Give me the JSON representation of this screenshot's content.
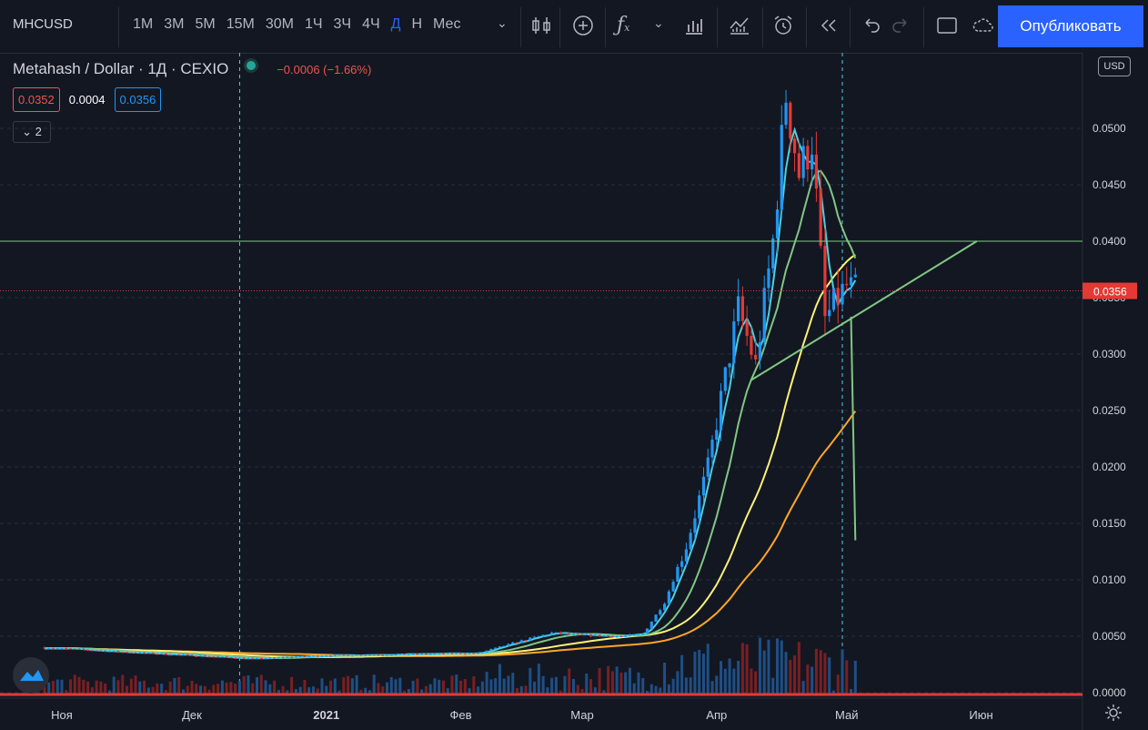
{
  "toolbar": {
    "symbol": "MHCUSD",
    "timeframes": [
      "1М",
      "3М",
      "5М",
      "15М",
      "30М",
      "1Ч",
      "3Ч",
      "4Ч",
      "Д",
      "Н",
      "Мес"
    ],
    "active_timeframe": "Д",
    "publish_label": "Опубликовать"
  },
  "legend": {
    "title": "Metahash / Dollar · 1Д · CEXIO",
    "change": "−0.0006 (−1.66%)",
    "bid": "0.0352",
    "spread": "0.0004",
    "ask": "0.0356",
    "collapsed_count": "2"
  },
  "price_scale": {
    "currency": "USD",
    "current_price_label": "0.0356"
  },
  "colors": {
    "background": "#131722",
    "up": "#2196f3",
    "down": "#e53935",
    "ma_fast": "#4dd0e1",
    "ma_mid": "#81c784",
    "ma_slow": "#fff176",
    "ma_slowest": "#ffa726",
    "drawing_line": "#81c784",
    "accent": "#2962ff"
  },
  "chart_data": {
    "type": "candlestick",
    "x_tick_labels": [
      "Ноя",
      "Дек",
      "2021",
      "Фев",
      "Мар",
      "Апр",
      "Май",
      "Июн"
    ],
    "y_tick_labels": [
      "0.0000",
      "0.0050",
      "0.0100",
      "0.0150",
      "0.0200",
      "0.0250",
      "0.0300",
      "0.0350",
      "0.0400",
      "0.0450",
      "0.0500"
    ],
    "ylim": [
      0,
      0.055
    ],
    "current_price": 0.0356,
    "horizontal_level": 0.04,
    "trendline": [
      [
        "2021-04-09",
        0.0277
      ],
      [
        "2021-05-31",
        0.04
      ]
    ],
    "vertical_line": [
      [
        "2021-05-02",
        0.0333
      ],
      [
        "2021-05-03",
        0.0135
      ]
    ],
    "vertical_markers": [
      "2020-12-12",
      "2021-04-30"
    ],
    "close_approx": [
      [
        "2020-10-28",
        0.004
      ],
      [
        "2020-11-15",
        0.0036
      ],
      [
        "2020-12-01",
        0.0033
      ],
      [
        "2020-12-15",
        0.003
      ],
      [
        "2021-01-01",
        0.0033
      ],
      [
        "2021-01-20",
        0.0034
      ],
      [
        "2021-02-05",
        0.0035
      ],
      [
        "2021-02-15",
        0.0046
      ],
      [
        "2021-02-22",
        0.0053
      ],
      [
        "2021-03-01",
        0.0051
      ],
      [
        "2021-03-10",
        0.005
      ],
      [
        "2021-03-15",
        0.0052
      ],
      [
        "2021-03-20",
        0.008
      ],
      [
        "2021-03-25",
        0.013
      ],
      [
        "2021-03-30",
        0.02
      ],
      [
        "2021-04-03",
        0.028
      ],
      [
        "2021-04-06",
        0.034
      ],
      [
        "2021-04-10",
        0.029
      ],
      [
        "2021-04-14",
        0.04
      ],
      [
        "2021-04-17",
        0.053
      ],
      [
        "2021-04-20",
        0.046
      ],
      [
        "2021-04-23",
        0.049
      ],
      [
        "2021-04-26",
        0.033
      ],
      [
        "2021-04-29",
        0.035
      ],
      [
        "2021-05-01",
        0.036
      ],
      [
        "2021-05-03",
        0.0356
      ]
    ]
  }
}
